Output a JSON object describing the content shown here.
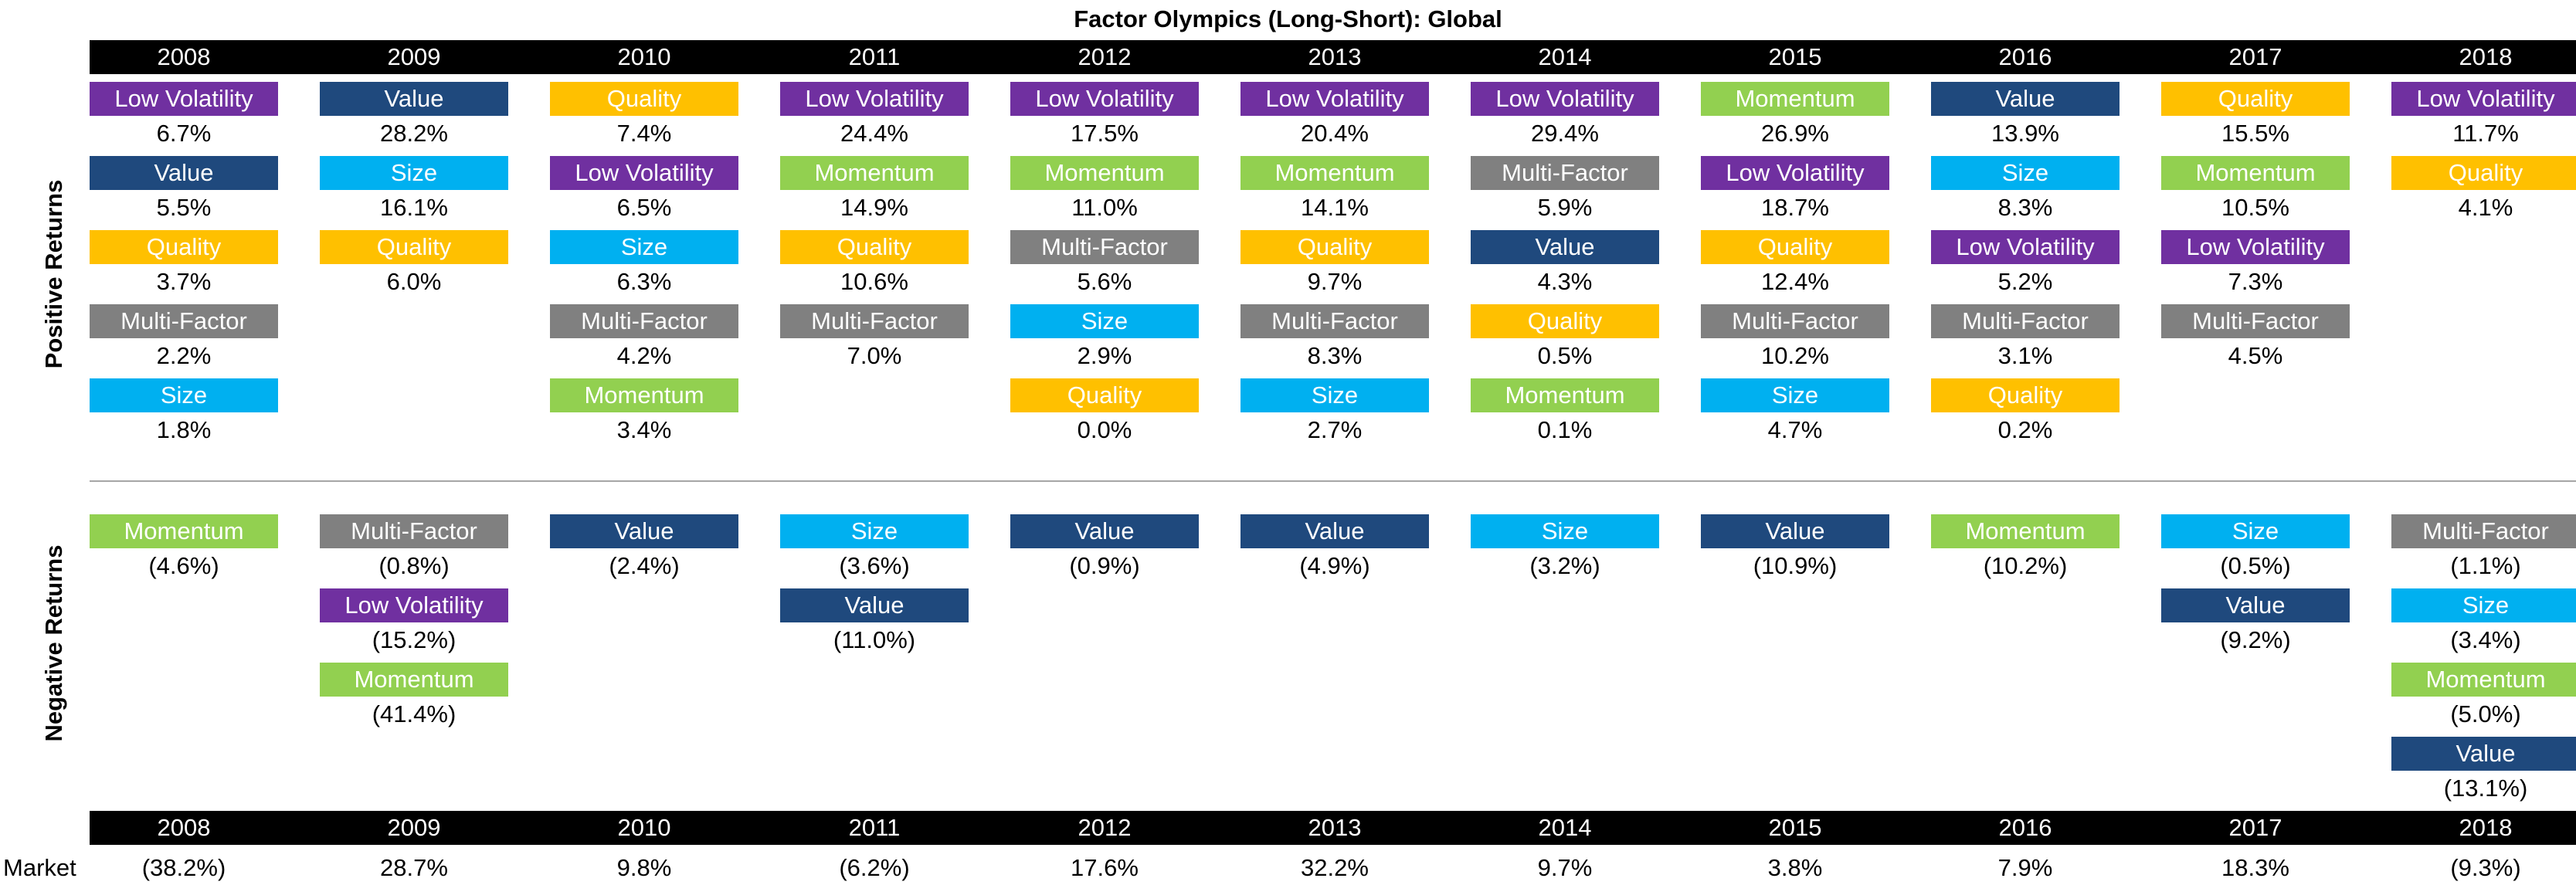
{
  "title": "Factor Olympics (Long-Short): Global",
  "positive_label": "Positive Returns",
  "negative_label": "Negative Returns",
  "market_label": "Market",
  "colors": {
    "Low Volatility": "#7030a0",
    "Value": "#1f497d",
    "Quality": "#ffc000",
    "Multi-Factor": "#808080",
    "Size": "#00b0f0",
    "Momentum": "#92d050"
  },
  "chart_data": {
    "type": "table",
    "title": "Factor Olympics (Long-Short): Global",
    "years": [
      "2008",
      "2009",
      "2010",
      "2011",
      "2012",
      "2013",
      "2014",
      "2015",
      "2016",
      "2017",
      "2018"
    ],
    "positive": [
      [
        {
          "factor": "Low Volatility",
          "value": "6.7%"
        },
        {
          "factor": "Value",
          "value": "5.5%"
        },
        {
          "factor": "Quality",
          "value": "3.7%"
        },
        {
          "factor": "Multi-Factor",
          "value": "2.2%"
        },
        {
          "factor": "Size",
          "value": "1.8%"
        }
      ],
      [
        {
          "factor": "Value",
          "value": "28.2%"
        },
        {
          "factor": "Size",
          "value": "16.1%"
        },
        {
          "factor": "Quality",
          "value": "6.0%"
        }
      ],
      [
        {
          "factor": "Quality",
          "value": "7.4%"
        },
        {
          "factor": "Low Volatility",
          "value": "6.5%"
        },
        {
          "factor": "Size",
          "value": "6.3%"
        },
        {
          "factor": "Multi-Factor",
          "value": "4.2%"
        },
        {
          "factor": "Momentum",
          "value": "3.4%"
        }
      ],
      [
        {
          "factor": "Low Volatility",
          "value": "24.4%"
        },
        {
          "factor": "Momentum",
          "value": "14.9%"
        },
        {
          "factor": "Quality",
          "value": "10.6%"
        },
        {
          "factor": "Multi-Factor",
          "value": "7.0%"
        }
      ],
      [
        {
          "factor": "Low Volatility",
          "value": "17.5%"
        },
        {
          "factor": "Momentum",
          "value": "11.0%"
        },
        {
          "factor": "Multi-Factor",
          "value": "5.6%"
        },
        {
          "factor": "Size",
          "value": "2.9%"
        },
        {
          "factor": "Quality",
          "value": "0.0%"
        }
      ],
      [
        {
          "factor": "Low Volatility",
          "value": "20.4%"
        },
        {
          "factor": "Momentum",
          "value": "14.1%"
        },
        {
          "factor": "Quality",
          "value": "9.7%"
        },
        {
          "factor": "Multi-Factor",
          "value": "8.3%"
        },
        {
          "factor": "Size",
          "value": "2.7%"
        }
      ],
      [
        {
          "factor": "Low Volatility",
          "value": "29.4%"
        },
        {
          "factor": "Multi-Factor",
          "value": "5.9%"
        },
        {
          "factor": "Value",
          "value": "4.3%"
        },
        {
          "factor": "Quality",
          "value": "0.5%"
        },
        {
          "factor": "Momentum",
          "value": "0.1%"
        }
      ],
      [
        {
          "factor": "Momentum",
          "value": "26.9%"
        },
        {
          "factor": "Low Volatility",
          "value": "18.7%"
        },
        {
          "factor": "Quality",
          "value": "12.4%"
        },
        {
          "factor": "Multi-Factor",
          "value": "10.2%"
        },
        {
          "factor": "Size",
          "value": "4.7%"
        }
      ],
      [
        {
          "factor": "Value",
          "value": "13.9%"
        },
        {
          "factor": "Size",
          "value": "8.3%"
        },
        {
          "factor": "Low Volatility",
          "value": "5.2%"
        },
        {
          "factor": "Multi-Factor",
          "value": "3.1%"
        },
        {
          "factor": "Quality",
          "value": "0.2%"
        }
      ],
      [
        {
          "factor": "Quality",
          "value": "15.5%"
        },
        {
          "factor": "Momentum",
          "value": "10.5%"
        },
        {
          "factor": "Low Volatility",
          "value": "7.3%"
        },
        {
          "factor": "Multi-Factor",
          "value": "4.5%"
        }
      ],
      [
        {
          "factor": "Low Volatility",
          "value": "11.7%"
        },
        {
          "factor": "Quality",
          "value": "4.1%"
        }
      ]
    ],
    "negative": [
      [
        {
          "factor": "Momentum",
          "value": "(4.6%)"
        }
      ],
      [
        {
          "factor": "Multi-Factor",
          "value": "(0.8%)"
        },
        {
          "factor": "Low Volatility",
          "value": "(15.2%)"
        },
        {
          "factor": "Momentum",
          "value": "(41.4%)"
        }
      ],
      [
        {
          "factor": "Value",
          "value": "(2.4%)"
        }
      ],
      [
        {
          "factor": "Size",
          "value": "(3.6%)"
        },
        {
          "factor": "Value",
          "value": "(11.0%)"
        }
      ],
      [
        {
          "factor": "Value",
          "value": "(0.9%)"
        }
      ],
      [
        {
          "factor": "Value",
          "value": "(4.9%)"
        }
      ],
      [
        {
          "factor": "Size",
          "value": "(3.2%)"
        }
      ],
      [
        {
          "factor": "Value",
          "value": "(10.9%)"
        }
      ],
      [
        {
          "factor": "Momentum",
          "value": "(10.2%)"
        }
      ],
      [
        {
          "factor": "Size",
          "value": "(0.5%)"
        },
        {
          "factor": "Value",
          "value": "(9.2%)"
        }
      ],
      [
        {
          "factor": "Multi-Factor",
          "value": "(1.1%)"
        },
        {
          "factor": "Size",
          "value": "(3.4%)"
        },
        {
          "factor": "Momentum",
          "value": "(5.0%)"
        },
        {
          "factor": "Value",
          "value": "(13.1%)"
        }
      ]
    ],
    "market": [
      "(38.2%)",
      "28.7%",
      "9.8%",
      "(6.2%)",
      "17.6%",
      "32.2%",
      "9.7%",
      "3.8%",
      "7.9%",
      "18.3%",
      "(9.3%)"
    ]
  }
}
